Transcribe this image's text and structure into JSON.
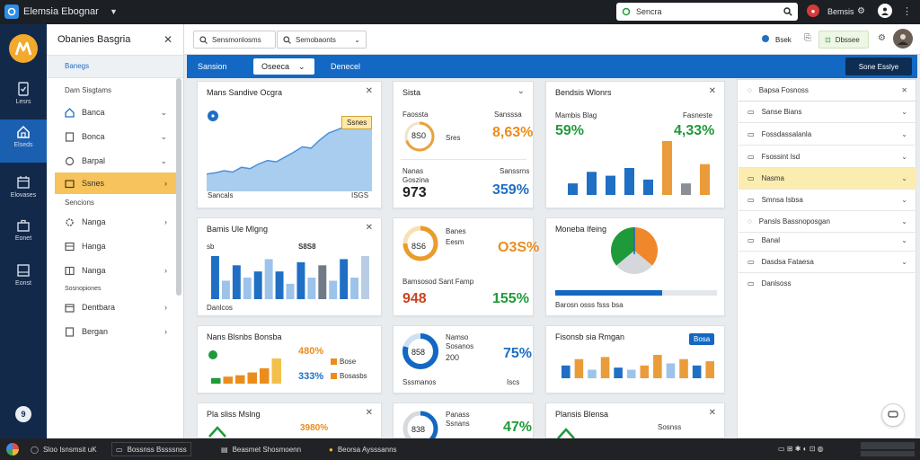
{
  "app": {
    "title": "Elemsia Ebognar",
    "search": "Sencra"
  },
  "titlebar": {
    "user": "Bemsis"
  },
  "sidebar": {
    "items": [
      "Lesrs",
      "Elseds",
      "Elovases",
      "Eonet",
      "Eonst"
    ],
    "bottom_badge": "9"
  },
  "panel": {
    "title": "Obanies Basgria",
    "subtitle": "Banegs",
    "section1": "Dam Sisgtams",
    "items1": [
      "Banca",
      "Bonca",
      "Barpal",
      "Ssnes"
    ],
    "section2": "Sencions",
    "items2": [
      "Nanga",
      "Hanga",
      "Nanga"
    ],
    "section3": "Sosnopiones",
    "items3": [
      "Dentbara",
      "Bergan"
    ]
  },
  "toolbar": {
    "btn1": "Sensmonlosms",
    "btn2": "Semobaonts",
    "cloud_label": "Bsek",
    "btn3": "Dbssee"
  },
  "bluebar": {
    "tab1": "Sansion",
    "tab2": "Oseeca",
    "tab3": "Denecel",
    "action": "Sone Esslye"
  },
  "cards": {
    "c1": {
      "title": "Mans Sandive Ocgra",
      "tooltip": "Ssnes",
      "xstart": "Sancals",
      "xend": "ISGS"
    },
    "c2": {
      "title": "Sista",
      "a_label": "Faossta",
      "a_ring": "8S0",
      "a_sub": "Sres",
      "a_value": "8,63%",
      "a_tag": "Sansssa",
      "b_label": "Nanas",
      "b_sub": "Goszina",
      "b_value": "973",
      "b_pct": "359%",
      "b_tag": "Sanssrns"
    },
    "c3": {
      "title": "Bendsis Wlonrs",
      "sub": "Mambis Blag",
      "tag": "Fasneste",
      "v1": "59%",
      "v2": "4,33%"
    },
    "c4": {
      "title": "Bamis Ule Mlgng",
      "mark": "sb",
      "value": "S8S8",
      "xlabel": "Danlcos"
    },
    "c5": {
      "ring": "8S6",
      "label": "Banes",
      "sub": "Eesm",
      "pct": "O3S%",
      "row_label": "Bamsosod Sant Famp",
      "v1": "948",
      "v2": "155%"
    },
    "c6": {
      "title": "Moneba Ifeing",
      "caption": "Barosn osss fsss bsa"
    },
    "c7": {
      "title": "Nans Blsnbs Bonsba",
      "v1": "480%",
      "v2": "333%",
      "leg1": "Bose",
      "leg2": "Bosasbs"
    },
    "c8": {
      "ring": "858",
      "l1": "Namso",
      "l2": "Sosanos",
      "v1": "200",
      "pct": "75%",
      "foot_l": "Sssmanos",
      "foot_r": "Iscs"
    },
    "c9": {
      "title": "Fisonsb sia Rmgan",
      "badge": "Bosa"
    },
    "c10": {
      "title": "Pla sliss Mslng",
      "v1": "3980%"
    },
    "c11": {
      "ring": "838",
      "l1": "Panass",
      "l2": "Ssnans",
      "pct": "47%"
    },
    "c12": {
      "title": "Plansis Blensa",
      "v1": "Sosnss"
    }
  },
  "rpanel": {
    "title": "Bapsa Fosnoss",
    "items": [
      "Sanse Bians",
      "Fossdassalanla",
      "Fsossint Isd",
      "Nasma",
      "Smnsa Isbsa",
      "Pansls Bassnoposgan",
      "Banal",
      "Dasdsa Fataesa",
      "Danlsoss"
    ]
  },
  "taskbar": {
    "t1": "Sloo Isnsmsit uK",
    "t2": "Bossnss Bssssnss",
    "t3": "Beasmet Shosmoenn",
    "t4": "Beorsa Aysssanns"
  },
  "colors": {
    "blue": "#1268c3",
    "green": "#1f9a3a",
    "orange": "#ea8d1d",
    "sidebar": "#12294a"
  },
  "chart_data": [
    {
      "type": "area",
      "name": "c1",
      "values": [
        20,
        22,
        25,
        23,
        30,
        28,
        35,
        40,
        38,
        45,
        52,
        60,
        58,
        70,
        80,
        85,
        90,
        88,
        95,
        100
      ]
    },
    {
      "type": "bar",
      "name": "c3",
      "values": [
        15,
        30,
        25,
        35,
        20,
        70,
        15,
        40
      ]
    },
    {
      "type": "bar",
      "name": "c4",
      "values": [
        70,
        30,
        55,
        35,
        45,
        65,
        45,
        25,
        60,
        35,
        55,
        30,
        65,
        35,
        70
      ]
    },
    {
      "type": "pie",
      "name": "c6",
      "values": [
        36,
        28,
        36
      ]
    },
    {
      "type": "bar",
      "name": "c7",
      "values": [
        20,
        25,
        30,
        40,
        55,
        90
      ]
    },
    {
      "type": "bar",
      "name": "c9",
      "values": [
        30,
        45,
        20,
        50,
        25,
        20,
        30,
        55,
        35,
        45,
        30,
        40
      ]
    }
  ]
}
